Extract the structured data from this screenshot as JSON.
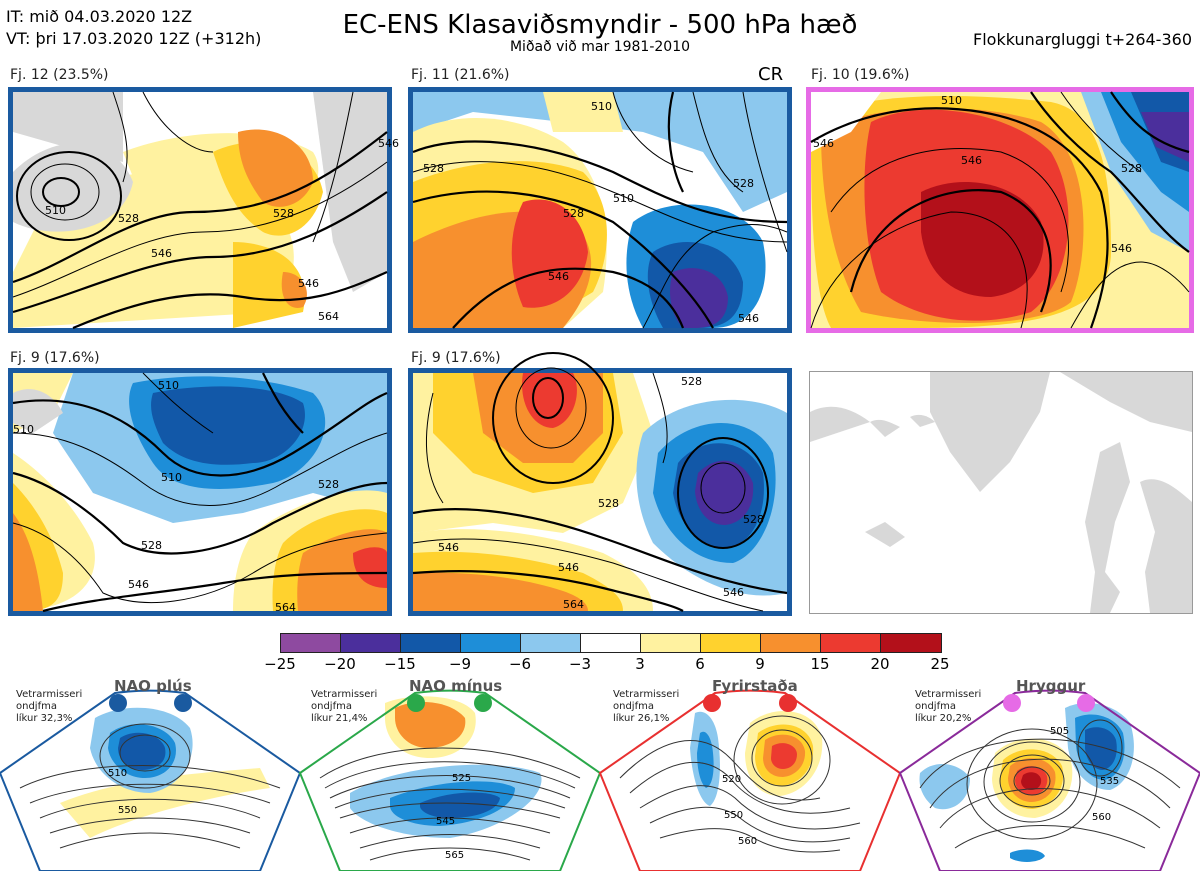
{
  "header": {
    "init_time": "IT: mið 04.03.2020 12Z",
    "valid_time": "VT: þri 17.03.2020 12Z  (+312h)",
    "title": "EC-ENS Klasaviðsmyndir - 500 hPa hæð",
    "subtitle": "Miðað við mar 1981-2010",
    "window": "Flokkunargluggi t+264-360"
  },
  "panels": [
    {
      "label": "Fj. 12 (23.5%)",
      "frame_color": "#1a5aa0",
      "contours": [
        "510",
        "528",
        "546",
        "546",
        "528",
        "546",
        "564"
      ]
    },
    {
      "label": "Fj. 11 (21.6%)",
      "extra": "CR",
      "frame_color": "#1a5aa0",
      "contours": [
        "528",
        "510",
        "528",
        "546",
        "510",
        "528",
        "546"
      ]
    },
    {
      "label": "Fj. 10 (19.6%)",
      "frame_color": "#e66be6",
      "contours": [
        "510",
        "546",
        "528",
        "546",
        "546"
      ]
    },
    {
      "label": "Fj. 9 (17.6%)",
      "frame_color": "#1a5aa0",
      "contours": [
        "510",
        "510",
        "510",
        "528",
        "546",
        "564",
        "528"
      ]
    },
    {
      "label": "Fj. 9 (17.6%)",
      "frame_color": "#1a5aa0",
      "contours": [
        "528",
        "546",
        "528",
        "546",
        "564",
        "528",
        "546"
      ]
    }
  ],
  "colorbar": {
    "ticks": [
      "−25",
      "−20",
      "−15",
      "−9",
      "−6",
      "−3",
      "3",
      "6",
      "9",
      "15",
      "20",
      "25"
    ],
    "colors": [
      "#8e4aa0",
      "#4b2f9c",
      "#1258a8",
      "#1e8ed8",
      "#8cc8ee",
      "#ffffff",
      "#fff2a0",
      "#ffd22e",
      "#f7902e",
      "#ec3a30",
      "#b3101a"
    ]
  },
  "regimes": [
    {
      "name": "NAO plús",
      "note": [
        "Vetrarmisseri",
        "ondjfma",
        "líkur 32,3%"
      ],
      "color": "#1a5aa0",
      "dot_color": "#1a5aa0",
      "contours": [
        "510",
        "550"
      ]
    },
    {
      "name": "NAO mínus",
      "note": [
        "Vetrarmisseri",
        "ondjfma",
        "líkur 21,4%"
      ],
      "color": "#2aa84a",
      "dot_color": "#2aa84a",
      "contours": [
        "525",
        "545",
        "565"
      ]
    },
    {
      "name": "Fyrirstaða",
      "note": [
        "Vetrarmisseri",
        "ondjfma",
        "líkur 26,1%"
      ],
      "color": "#e83030",
      "dot_color": "#e83030",
      "contours": [
        "520",
        "550",
        "560"
      ]
    },
    {
      "name": "Hryggur",
      "note": [
        "Vetrarmisseri",
        "ondjfma",
        "líkur 20,2%"
      ],
      "color": "#8a2a9a",
      "dot_color": "#e66be6",
      "contours": [
        "505",
        "535",
        "560"
      ]
    }
  ]
}
